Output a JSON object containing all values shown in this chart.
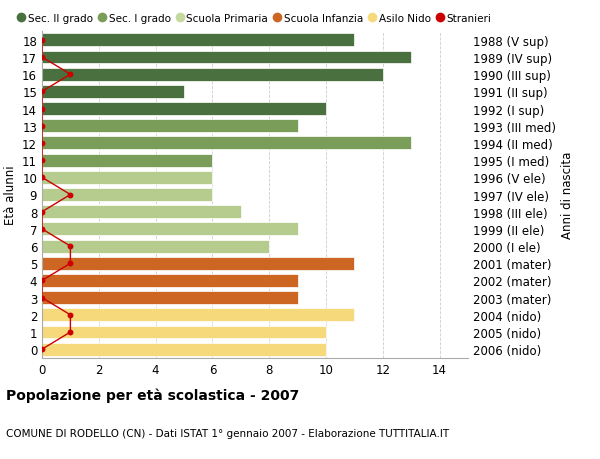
{
  "ages": [
    18,
    17,
    16,
    15,
    14,
    13,
    12,
    11,
    10,
    9,
    8,
    7,
    6,
    5,
    4,
    3,
    2,
    1,
    0
  ],
  "years": [
    "1988 (V sup)",
    "1989 (IV sup)",
    "1990 (III sup)",
    "1991 (II sup)",
    "1992 (I sup)",
    "1993 (III med)",
    "1994 (II med)",
    "1995 (I med)",
    "1996 (V ele)",
    "1997 (IV ele)",
    "1998 (III ele)",
    "1999 (II ele)",
    "2000 (I ele)",
    "2001 (mater)",
    "2002 (mater)",
    "2003 (mater)",
    "2004 (nido)",
    "2005 (nido)",
    "2006 (nido)"
  ],
  "bar_values": [
    11,
    13,
    12,
    5,
    10,
    9,
    13,
    6,
    6,
    6,
    7,
    9,
    8,
    11,
    9,
    9,
    11,
    10,
    10
  ],
  "bar_colors": [
    "#4a7040",
    "#4a7040",
    "#4a7040",
    "#4a7040",
    "#4a7040",
    "#7a9e5a",
    "#7a9e5a",
    "#7a9e5a",
    "#b5cc8e",
    "#b5cc8e",
    "#b5cc8e",
    "#b5cc8e",
    "#b5cc8e",
    "#cc6622",
    "#cc6622",
    "#cc6622",
    "#f5d97a",
    "#f5d97a",
    "#f5d97a"
  ],
  "stranieri_x": [
    0,
    0,
    1,
    0,
    0,
    0,
    0,
    0,
    0,
    1,
    0,
    0,
    1,
    1,
    0,
    0,
    1,
    1,
    0
  ],
  "legend_labels": [
    "Sec. II grado",
    "Sec. I grado",
    "Scuola Primaria",
    "Scuola Infanzia",
    "Asilo Nido",
    "Stranieri"
  ],
  "legend_colors": [
    "#4a7040",
    "#7a9e5a",
    "#c5d99e",
    "#cc6622",
    "#f5d97a",
    "#cc0000"
  ],
  "stranieri_color": "#cc0000",
  "title_bold": "Popolazione per età scolastica - 2007",
  "subtitle": "COMUNE DI RODELLO (CN) - Dati ISTAT 1° gennaio 2007 - Elaborazione TUTTITALIA.IT",
  "ylabel": "Età alunni",
  "ylabel_right": "Anni di nascita",
  "xlim": [
    0,
    15
  ],
  "bar_height": 0.75,
  "bg_color": "#ffffff",
  "grid_color": "#cccccc",
  "font_size": 8.5
}
